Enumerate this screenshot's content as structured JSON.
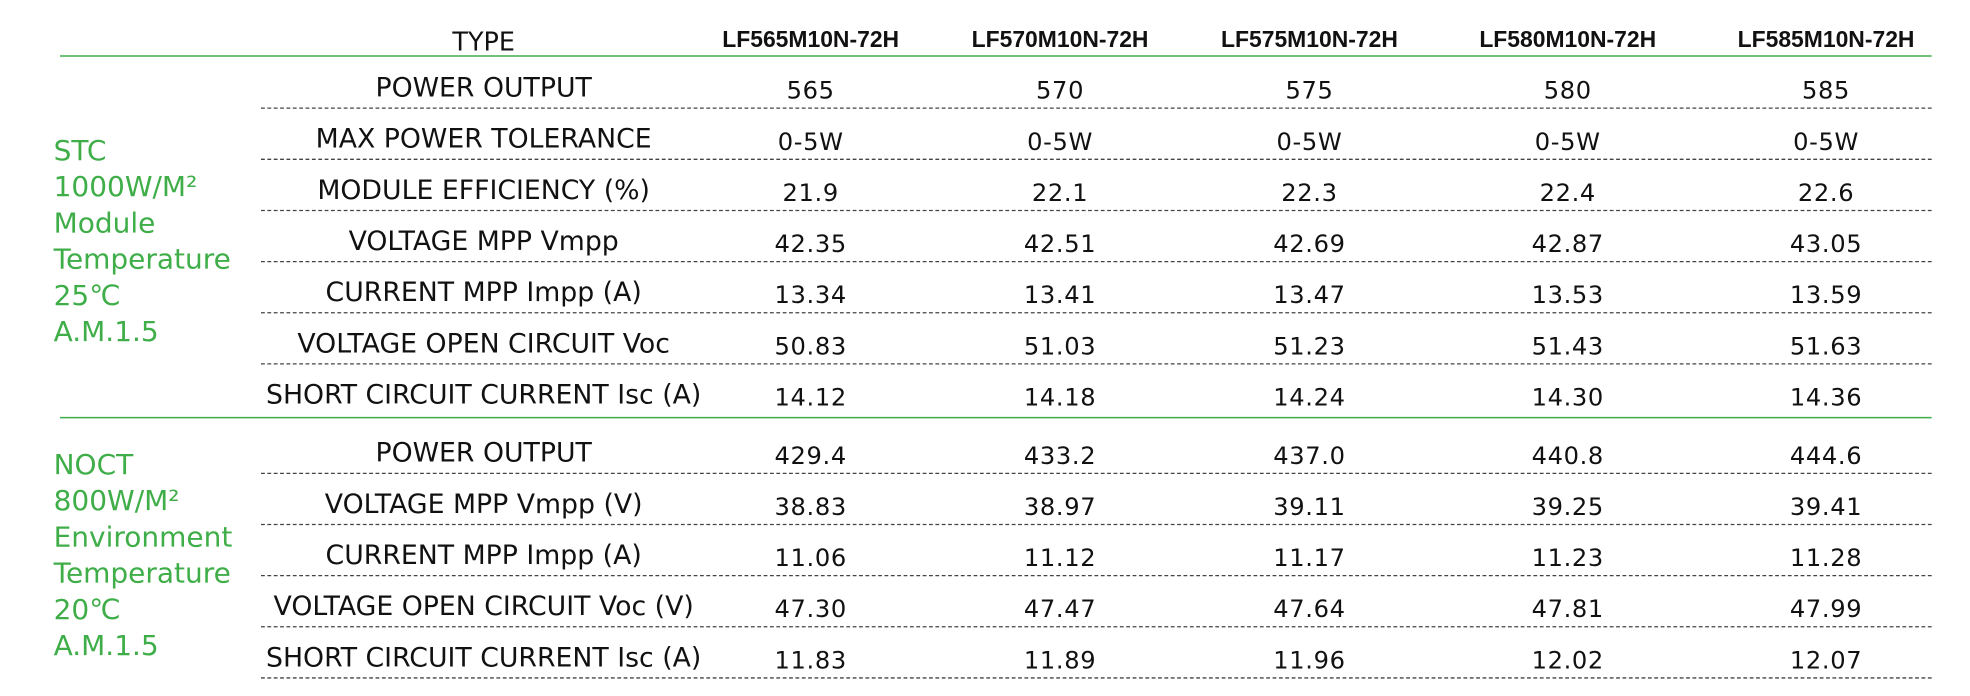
{
  "header": {
    "type_label": "TYPE",
    "models": [
      "LF565M10N-72H",
      "LF570M10N-72H",
      "LF575M10N-72H",
      "LF580M10N-72H",
      "LF585M10N-72H"
    ]
  },
  "sections": [
    {
      "condition": [
        "STC",
        "1000W/M²",
        "Module",
        "Temperature",
        "25℃",
        "A.M.1.5"
      ],
      "rows": [
        {
          "label": "POWER OUTPUT",
          "values": [
            "565",
            "570",
            "575",
            "580",
            "585"
          ]
        },
        {
          "label": "MAX POWER TOLERANCE",
          "values": [
            "0-5W",
            "0-5W",
            "0-5W",
            "0-5W",
            "0-5W"
          ]
        },
        {
          "label": "MODULE EFFICIENCY  (%)",
          "values": [
            "21.9",
            "22.1",
            "22.3",
            "22.4",
            "22.6"
          ]
        },
        {
          "label": "VOLTAGE MPP Vmpp",
          "values": [
            "42.35",
            "42.51",
            "42.69",
            "42.87",
            "43.05"
          ]
        },
        {
          "label": "CURRENT MPP Impp (A)",
          "values": [
            "13.34",
            "13.41",
            "13.47",
            "13.53",
            "13.59"
          ]
        },
        {
          "label": "VOLTAGE OPEN CIRCUIT Voc",
          "values": [
            "50.83",
            "51.03",
            "51.23",
            "51.43",
            "51.63"
          ]
        },
        {
          "label": "SHORT CIRCUIT CURRENT Isc  (A)",
          "values": [
            "14.12",
            "14.18",
            "14.24",
            "14.30",
            "14.36"
          ]
        }
      ]
    },
    {
      "condition": [
        "NOCT",
        "800W/M²",
        "Environment",
        "Temperature",
        "20℃",
        "A.M.1.5"
      ],
      "rows": [
        {
          "label": "POWER OUTPUT",
          "values": [
            "429.4",
            "433.2",
            "437.0",
            "440.8",
            "444.6"
          ]
        },
        {
          "label": "VOLTAGE MPP Vmpp (V)",
          "values": [
            "38.83",
            "38.97",
            "39.11",
            "39.25",
            "39.41"
          ]
        },
        {
          "label": "CURRENT MPP Impp (A)",
          "values": [
            "11.06",
            "11.12",
            "11.17",
            "11.23",
            "11.28"
          ]
        },
        {
          "label": "VOLTAGE OPEN CIRCUIT Voc (V)",
          "values": [
            "47.30",
            "47.47",
            "47.64",
            "47.81",
            "47.99"
          ]
        },
        {
          "label": "SHORT CIRCUIT CURRENT Isc (A)",
          "values": [
            "11.83",
            "11.89",
            "11.96",
            "12.02",
            "12.07"
          ]
        }
      ]
    }
  ]
}
